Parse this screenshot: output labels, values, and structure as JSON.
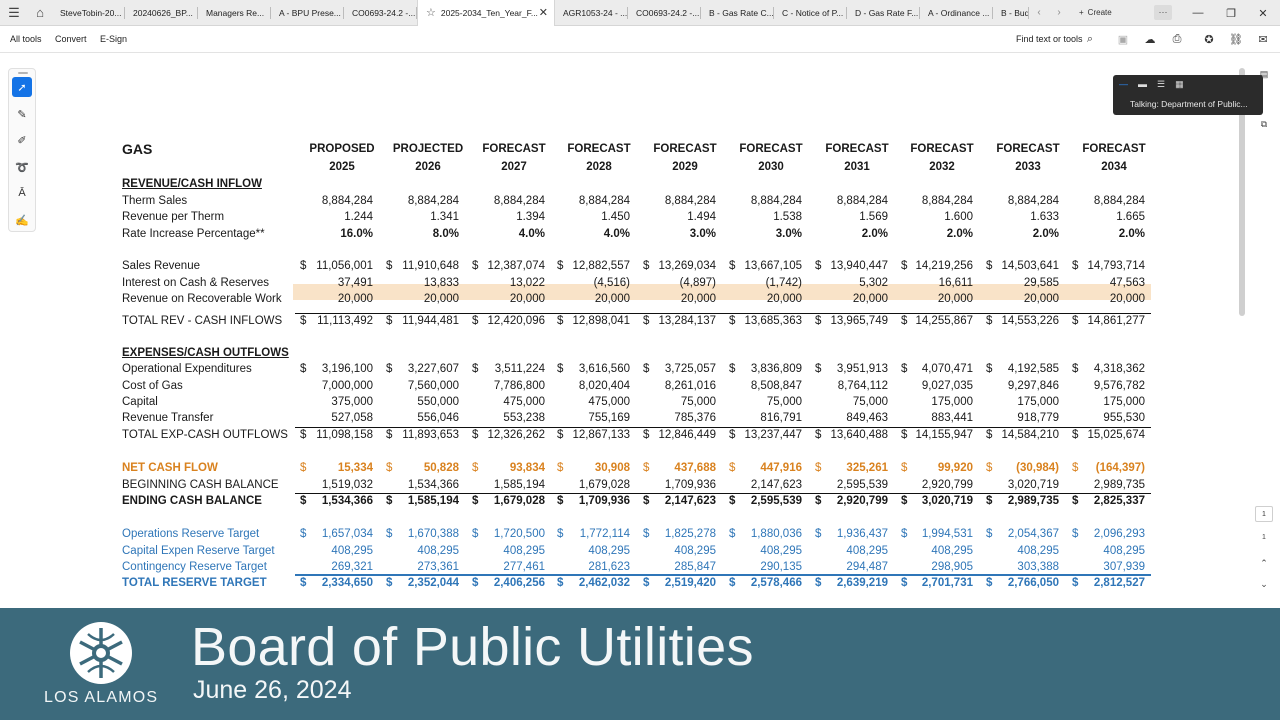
{
  "tabs": [
    {
      "label": "SteveTobin-20..."
    },
    {
      "label": "20240626_BP..."
    },
    {
      "label": "Managers Re..."
    },
    {
      "label": "A - BPU Prese..."
    },
    {
      "label": "CO0693-24.2 -..."
    },
    {
      "label": "2025-2034_Ten_Year_F...",
      "active": true
    },
    {
      "label": "AGR1053-24 - ..."
    },
    {
      "label": "CO0693-24.2 -..."
    },
    {
      "label": "B - Gas Rate C..."
    },
    {
      "label": "C - Notice of P..."
    },
    {
      "label": "D - Gas Rate F..."
    },
    {
      "label": "A - Ordinance ..."
    },
    {
      "label": "B - Bud"
    }
  ],
  "create_label": "Create",
  "toolbar": {
    "all_tools": "All tools",
    "convert": "Convert",
    "esign": "E-Sign",
    "find_text": "Find text or tools"
  },
  "meeting": {
    "talking": "Talking: Department of Public..."
  },
  "page_nav": {
    "current": "1",
    "total": "1"
  },
  "sheet": {
    "title": "GAS",
    "headers": [
      {
        "top": "PROPOSED",
        "year": "2025"
      },
      {
        "top": "PROJECTED",
        "year": "2026"
      },
      {
        "top": "FORECAST",
        "year": "2027"
      },
      {
        "top": "FORECAST",
        "year": "2028"
      },
      {
        "top": "FORECAST",
        "year": "2029"
      },
      {
        "top": "FORECAST",
        "year": "2030"
      },
      {
        "top": "FORECAST",
        "year": "2031"
      },
      {
        "top": "FORECAST",
        "year": "2032"
      },
      {
        "top": "FORECAST",
        "year": "2033"
      },
      {
        "top": "FORECAST",
        "year": "2034"
      }
    ],
    "currency_symbol": "$",
    "rows": [
      {
        "type": "section",
        "label": "REVENUE/CASH INFLOW"
      },
      {
        "type": "row",
        "label": "Therm Sales",
        "values": [
          "8,884,284",
          "8,884,284",
          "8,884,284",
          "8,884,284",
          "8,884,284",
          "8,884,284",
          "8,884,284",
          "8,884,284",
          "8,884,284",
          "8,884,284"
        ]
      },
      {
        "type": "row",
        "label": "Revenue per Therm",
        "values": [
          "1.244",
          "1.341",
          "1.394",
          "1.450",
          "1.494",
          "1.538",
          "1.569",
          "1.600",
          "1.633",
          "1.665"
        ]
      },
      {
        "type": "row",
        "label": "Rate Increase Percentage**",
        "bold_values": true,
        "values": [
          "16.0%",
          "8.0%",
          "4.0%",
          "4.0%",
          "3.0%",
          "3.0%",
          "2.0%",
          "2.0%",
          "2.0%",
          "2.0%"
        ]
      },
      {
        "type": "row",
        "label": "Sales Revenue",
        "currency": true,
        "values": [
          "11,056,001",
          "11,910,648",
          "12,387,074",
          "12,882,557",
          "13,269,034",
          "13,667,105",
          "13,940,447",
          "14,219,256",
          "14,503,641",
          "14,793,714"
        ]
      },
      {
        "type": "row",
        "label": "Interest on Cash & Reserves",
        "values": [
          "37,491",
          "13,833",
          "13,022",
          "(4,516)",
          "(4,897)",
          "(1,742)",
          "5,302",
          "16,611",
          "29,585",
          "47,563"
        ]
      },
      {
        "type": "row",
        "label": "Revenue on Recoverable Work",
        "values": [
          "20,000",
          "20,000",
          "20,000",
          "20,000",
          "20,000",
          "20,000",
          "20,000",
          "20,000",
          "20,000",
          "20,000"
        ]
      },
      {
        "type": "row",
        "label": "TOTAL REV - CASH INFLOWS",
        "currency": true,
        "values": [
          "11,113,492",
          "11,944,481",
          "12,420,096",
          "12,898,041",
          "13,284,137",
          "13,685,363",
          "13,965,749",
          "14,255,867",
          "14,553,226",
          "14,861,277"
        ]
      },
      {
        "type": "section",
        "label": "EXPENSES/CASH OUTFLOWS"
      },
      {
        "type": "row",
        "label": "Operational Expenditures",
        "currency": true,
        "values": [
          "3,196,100",
          "3,227,607",
          "3,511,224",
          "3,616,560",
          "3,725,057",
          "3,836,809",
          "3,951,913",
          "4,070,471",
          "4,192,585",
          "4,318,362"
        ]
      },
      {
        "type": "row",
        "label": "Cost of Gas",
        "values": [
          "7,000,000",
          "7,560,000",
          "7,786,800",
          "8,020,404",
          "8,261,016",
          "8,508,847",
          "8,764,112",
          "9,027,035",
          "9,297,846",
          "9,576,782"
        ]
      },
      {
        "type": "row",
        "label": "Capital",
        "values": [
          "375,000",
          "550,000",
          "475,000",
          "475,000",
          "75,000",
          "75,000",
          "75,000",
          "175,000",
          "175,000",
          "175,000"
        ]
      },
      {
        "type": "row",
        "label": "Revenue Transfer",
        "values": [
          "527,058",
          "556,046",
          "553,238",
          "755,169",
          "785,376",
          "816,791",
          "849,463",
          "883,441",
          "918,779",
          "955,530"
        ]
      },
      {
        "type": "row",
        "label": "TOTAL EXP-CASH OUTFLOWS",
        "currency": true,
        "values": [
          "11,098,158",
          "11,893,653",
          "12,326,262",
          "12,867,133",
          "12,846,449",
          "13,237,447",
          "13,640,488",
          "14,155,947",
          "14,584,210",
          "15,025,674"
        ]
      },
      {
        "type": "row",
        "label": "NET CASH FLOW",
        "currency": true,
        "color": "orange",
        "values": [
          "15,334",
          "50,828",
          "93,834",
          "30,908",
          "437,688",
          "447,916",
          "325,261",
          "99,920",
          "(30,984)",
          "(164,397)"
        ]
      },
      {
        "type": "row",
        "label": "BEGINNING CASH BALANCE",
        "values": [
          "1,519,032",
          "1,534,366",
          "1,585,194",
          "1,679,028",
          "1,709,936",
          "2,147,623",
          "2,595,539",
          "2,920,799",
          "3,020,719",
          "2,989,735"
        ]
      },
      {
        "type": "row",
        "label": "ENDING CASH BALANCE",
        "currency": true,
        "bold": true,
        "values": [
          "1,534,366",
          "1,585,194",
          "1,679,028",
          "1,709,936",
          "2,147,623",
          "2,595,539",
          "2,920,799",
          "3,020,719",
          "2,989,735",
          "2,825,337"
        ]
      },
      {
        "type": "row",
        "label": "Operations Reserve Target",
        "currency": true,
        "color": "blue",
        "values": [
          "1,657,034",
          "1,670,388",
          "1,720,500",
          "1,772,114",
          "1,825,278",
          "1,880,036",
          "1,936,437",
          "1,994,531",
          "2,054,367",
          "2,096,293"
        ]
      },
      {
        "type": "row",
        "label": "Capital Expen Reserve Target",
        "color": "blue",
        "values": [
          "408,295",
          "408,295",
          "408,295",
          "408,295",
          "408,295",
          "408,295",
          "408,295",
          "408,295",
          "408,295",
          "408,295"
        ]
      },
      {
        "type": "row",
        "label": "Contingency Reserve Target",
        "color": "blue",
        "values": [
          "269,321",
          "273,361",
          "277,461",
          "281,623",
          "285,847",
          "290,135",
          "294,487",
          "298,905",
          "303,388",
          "307,939"
        ]
      },
      {
        "type": "row",
        "label": "TOTAL RESERVE TARGET",
        "currency": true,
        "bold": true,
        "color": "blue",
        "values": [
          "2,334,650",
          "2,352,044",
          "2,406,256",
          "2,462,032",
          "2,519,420",
          "2,578,466",
          "2,639,219",
          "2,701,731",
          "2,766,050",
          "2,812,527"
        ]
      }
    ]
  },
  "banner": {
    "logo_text": "LOS ALAMOS",
    "title": "Board of Public Utilities",
    "date": "June 26, 2024"
  },
  "colors": {
    "banner_bg": "#3c6a7c",
    "orange": "#d9821f",
    "blue": "#2f76b8",
    "highlight": "#f9e3c8",
    "accent": "#1473e6"
  }
}
